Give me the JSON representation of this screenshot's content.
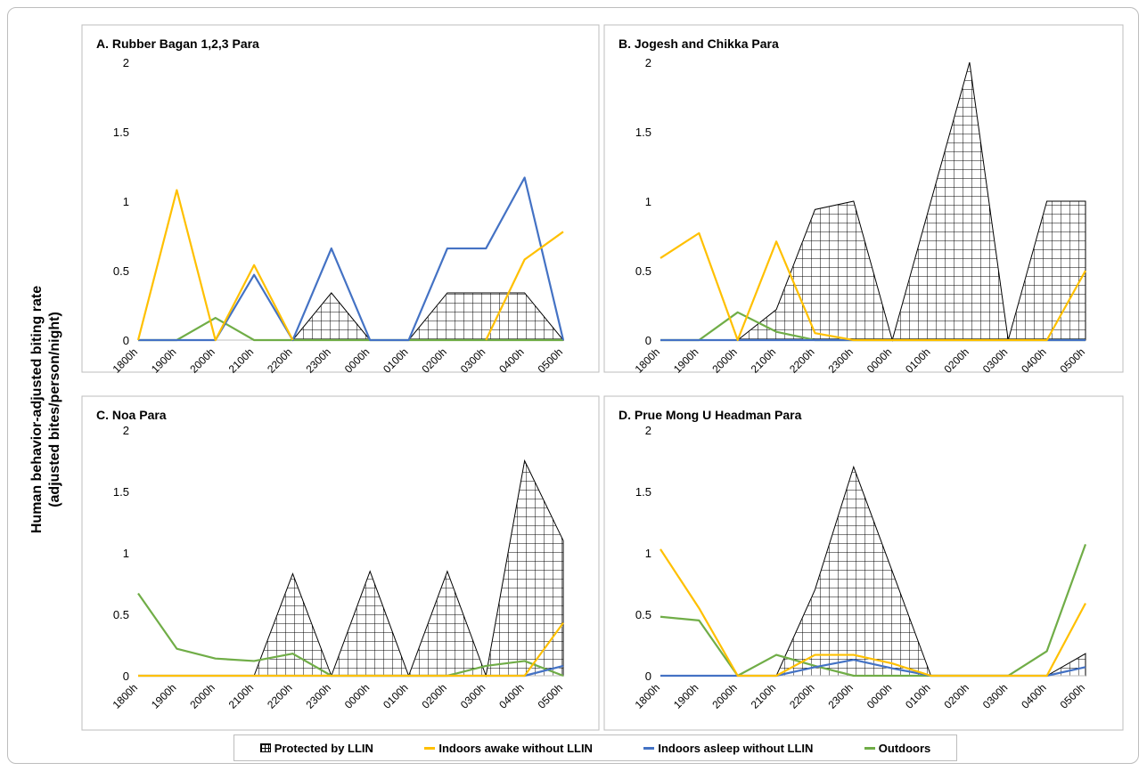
{
  "chart_data": [
    {
      "type": "line",
      "title": "A. Rubber Bagan 1,2,3 Para",
      "categories": [
        "1800h",
        "1900h",
        "2000h",
        "2100h",
        "2200h",
        "2300h",
        "0000h",
        "0100h",
        "0200h",
        "0300h",
        "0400h",
        "0500h"
      ],
      "ylim": [
        0,
        2
      ],
      "yticks": [
        "0",
        "0.5",
        "1",
        "1.5",
        "2"
      ],
      "series": [
        {
          "name": "Protected by LLIN",
          "values": [
            0,
            0,
            0,
            0,
            0,
            0.34,
            0,
            0,
            0.34,
            0.34,
            0.34,
            0
          ]
        },
        {
          "name": "Indoors awake without LLIN",
          "values": [
            0,
            1.08,
            0,
            0.54,
            0,
            null,
            null,
            null,
            null,
            0,
            0.58,
            0.78
          ]
        },
        {
          "name": "Indoors asleep without LLIN",
          "values": [
            0,
            0,
            0,
            0.47,
            0,
            0.66,
            0,
            0,
            0.66,
            0.66,
            1.17,
            0
          ]
        },
        {
          "name": "Outdoors",
          "values": [
            0,
            0,
            0.16,
            0,
            0,
            0,
            0,
            0,
            0,
            0,
            0,
            0
          ]
        }
      ]
    },
    {
      "type": "line",
      "title": "B. Jogesh and Chikka Para",
      "categories": [
        "1800h",
        "1900h",
        "2000h",
        "2100h",
        "2200h",
        "2300h",
        "0000h",
        "0100h",
        "0200h",
        "0300h",
        "0400h",
        "0500h"
      ],
      "ylim": [
        0,
        2
      ],
      "yticks": [
        "0",
        "0.5",
        "1",
        "1.5",
        "2"
      ],
      "series": [
        {
          "name": "Protected by LLIN",
          "values": [
            0,
            0,
            0,
            0.22,
            0.94,
            1.0,
            0,
            1.0,
            2.0,
            0,
            1.0,
            1.0
          ]
        },
        {
          "name": "Indoors awake without LLIN",
          "values": [
            0.59,
            0.77,
            0,
            0.71,
            0.05,
            0,
            0,
            0,
            0,
            0,
            0,
            0.5
          ]
        },
        {
          "name": "Indoors asleep without LLIN",
          "values": [
            0,
            0,
            0,
            0,
            0,
            0,
            0,
            0,
            0,
            0,
            0,
            0
          ]
        },
        {
          "name": "Outdoors",
          "values": [
            0,
            0,
            0.2,
            0.06,
            0,
            0,
            0,
            0,
            0,
            0,
            0,
            0
          ]
        }
      ]
    },
    {
      "type": "line",
      "title": "C. Noa Para",
      "categories": [
        "1800h",
        "1900h",
        "2000h",
        "2100h",
        "2200h",
        "2300h",
        "0000h",
        "0100h",
        "0200h",
        "0300h",
        "0400h",
        "0500h"
      ],
      "ylim": [
        0,
        2
      ],
      "yticks": [
        "0",
        "0.5",
        "1",
        "1.5",
        "2"
      ],
      "series": [
        {
          "name": "Protected by LLIN",
          "values": [
            0,
            0,
            0,
            0,
            0.83,
            0,
            0.85,
            0,
            0.85,
            0,
            1.75,
            1.1
          ]
        },
        {
          "name": "Indoors awake without LLIN",
          "values": [
            0,
            0,
            0,
            0,
            0,
            0,
            0,
            0,
            0,
            0,
            0,
            0.43
          ]
        },
        {
          "name": "Indoors asleep without LLIN",
          "values": [
            0,
            0,
            0,
            0,
            0,
            0,
            0,
            0,
            0,
            0,
            0,
            0.08
          ]
        },
        {
          "name": "Outdoors",
          "values": [
            0.67,
            0.22,
            0.14,
            0.12,
            0.18,
            0,
            0,
            0,
            0,
            0.08,
            0.12,
            0
          ]
        }
      ]
    },
    {
      "type": "line",
      "title": "D. Prue Mong U Headman Para",
      "categories": [
        "1800h",
        "1900h",
        "2000h",
        "2100h",
        "2200h",
        "2300h",
        "0000h",
        "0100h",
        "0200h",
        "0300h",
        "0400h",
        "0500h"
      ],
      "ylim": [
        0,
        2
      ],
      "yticks": [
        "0",
        "0.5",
        "1",
        "1.5",
        "2"
      ],
      "series": [
        {
          "name": "Protected by LLIN",
          "values": [
            0,
            0,
            0,
            0,
            0.7,
            1.7,
            0.85,
            0,
            0,
            0,
            0,
            0.18
          ]
        },
        {
          "name": "Indoors awake without LLIN",
          "values": [
            1.03,
            0.55,
            0,
            0,
            0.17,
            0.17,
            0.1,
            0,
            0,
            0,
            0,
            0.59
          ]
        },
        {
          "name": "Indoors asleep without LLIN",
          "values": [
            0,
            0,
            0,
            0,
            0.07,
            0.13,
            0.06,
            0,
            0,
            0,
            0,
            0.07
          ]
        },
        {
          "name": "Outdoors",
          "values": [
            0.48,
            0.45,
            0,
            0.17,
            0.08,
            0,
            0,
            0,
            0,
            0,
            0.2,
            1.07
          ]
        }
      ]
    }
  ],
  "ylabel_line1": "Human behavior-adjusted biting rate",
  "ylabel_line2": "(adjusted bites/person/night)",
  "legend": {
    "protected": "Protected by LLIN",
    "awake": "Indoors awake without LLIN",
    "asleep": "Indoors asleep without LLIN",
    "outdoors": "Outdoors"
  },
  "colors": {
    "awake": "#FFC000",
    "asleep": "#4472C4",
    "outdoors": "#70AD47",
    "hatch": "#000000"
  }
}
